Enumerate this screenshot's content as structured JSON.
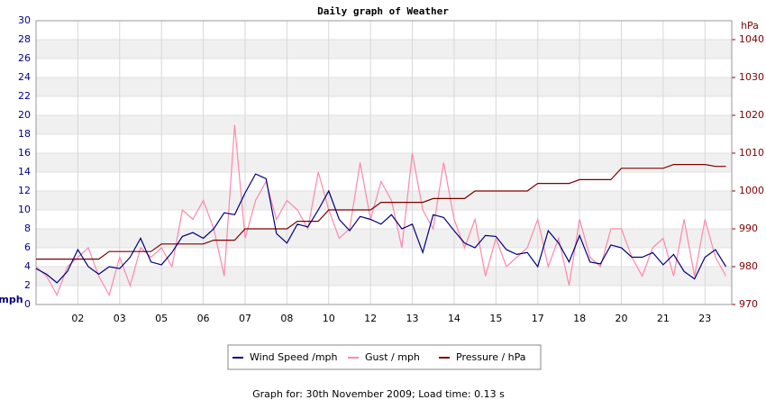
{
  "chart_data": {
    "type": "line",
    "title": "Daily graph of Weather",
    "y_label": "mph",
    "y2_label": "hPa",
    "footer": "Graph for: 30th November 2009; Load time: 0.13 s",
    "x": [
      0,
      0.25,
      0.5,
      0.75,
      1,
      1.25,
      1.5,
      1.75,
      2,
      2.25,
      2.5,
      2.75,
      3,
      3.25,
      3.5,
      3.75,
      4,
      4.25,
      4.5,
      4.75,
      5,
      5.25,
      5.5,
      5.75,
      6,
      6.25,
      6.5,
      6.75,
      7,
      7.25,
      7.5,
      7.75,
      8,
      8.25,
      8.5,
      8.75,
      9,
      9.25,
      9.5,
      9.75,
      10,
      10.25,
      10.5,
      10.75,
      11,
      11.25,
      11.5,
      11.75,
      12,
      12.25,
      12.5,
      12.75,
      13,
      13.25,
      13.5,
      13.75,
      14,
      14.25,
      14.5,
      14.75,
      15,
      15.25,
      15.5,
      15.75,
      16,
      16.25,
      16.5
    ],
    "xlim": [
      0,
      16.64
    ],
    "xticks": [
      {
        "value": 1,
        "label": "02"
      },
      {
        "value": 2,
        "label": "03"
      },
      {
        "value": 3,
        "label": "05"
      },
      {
        "value": 4,
        "label": "06"
      },
      {
        "value": 5,
        "label": "07"
      },
      {
        "value": 6,
        "label": "08"
      },
      {
        "value": 7,
        "label": "10"
      },
      {
        "value": 8,
        "label": "12"
      },
      {
        "value": 9,
        "label": "13"
      },
      {
        "value": 10,
        "label": "14"
      },
      {
        "value": 11,
        "label": "15"
      },
      {
        "value": 12,
        "label": "17"
      },
      {
        "value": 13,
        "label": "18"
      },
      {
        "value": 14,
        "label": "20"
      },
      {
        "value": 15,
        "label": "21"
      },
      {
        "value": 16,
        "label": "23"
      }
    ],
    "ylim": [
      0,
      30
    ],
    "yticks": [
      0,
      2,
      4,
      6,
      8,
      10,
      12,
      14,
      16,
      18,
      20,
      22,
      24,
      26,
      28,
      30
    ],
    "y2lim": [
      970,
      1045
    ],
    "y2ticks": [
      970,
      980,
      990,
      1000,
      1010,
      1020,
      1030,
      1040
    ],
    "grid": true,
    "series": [
      {
        "name": "Wind Speed /mph",
        "color": "#000080",
        "values": [
          3.8,
          3.2,
          2.3,
          3.5,
          5.8,
          4,
          3.2,
          4,
          3.8,
          5,
          7,
          4.5,
          4.2,
          5.5,
          7.2,
          7.6,
          7,
          8,
          9.7,
          9.5,
          11.8,
          13.8,
          13.3,
          7.5,
          6.5,
          8.5,
          8.2,
          10,
          12,
          9,
          7.8,
          9.3,
          9,
          8.5,
          9.5,
          8,
          8.5,
          5.5,
          9.5,
          9.2,
          7.8,
          6.5,
          6,
          7.3,
          7.2,
          5.8,
          5.3,
          5.5,
          4,
          7.8,
          6.5,
          4.5,
          7.3,
          4.5,
          4.3,
          6.3,
          6,
          5,
          5,
          5.5,
          4.2,
          5.3,
          3.5,
          2.7,
          5,
          5.8,
          4
        ]
      },
      {
        "name": "Gust / mph",
        "color": "#ff88aa",
        "values": [
          4,
          3,
          1,
          4,
          5,
          6,
          3,
          1,
          5,
          2,
          6,
          5,
          6,
          4,
          10,
          9,
          11,
          8,
          3,
          19,
          7,
          11,
          13,
          9,
          11,
          10,
          8,
          14,
          10,
          7,
          8,
          15,
          9,
          13,
          11,
          6,
          16,
          10,
          8,
          15,
          9,
          6,
          9,
          3,
          7,
          4,
          5,
          6,
          9,
          4,
          7,
          2,
          9,
          5,
          4,
          8,
          8,
          5,
          3,
          6,
          7,
          3,
          9,
          3,
          9,
          5,
          3
        ]
      },
      {
        "name": "Pressure / hPa",
        "color": "#800000",
        "axis": "y2",
        "values": [
          982,
          982,
          982,
          982,
          982,
          982,
          982,
          984,
          984,
          984,
          984,
          984,
          986,
          986,
          986,
          986,
          986,
          987,
          987,
          987,
          990,
          990,
          990,
          990,
          990,
          992,
          992,
          992,
          995,
          995,
          995,
          995,
          995,
          997,
          997,
          997,
          997,
          997,
          998,
          998,
          998,
          998,
          1000,
          1000,
          1000,
          1000,
          1000,
          1000,
          1002,
          1002,
          1002,
          1002,
          1003,
          1003,
          1003,
          1003,
          1006,
          1006,
          1006,
          1006,
          1006,
          1007,
          1007,
          1007,
          1007,
          1006.5,
          1006.5
        ]
      }
    ]
  }
}
